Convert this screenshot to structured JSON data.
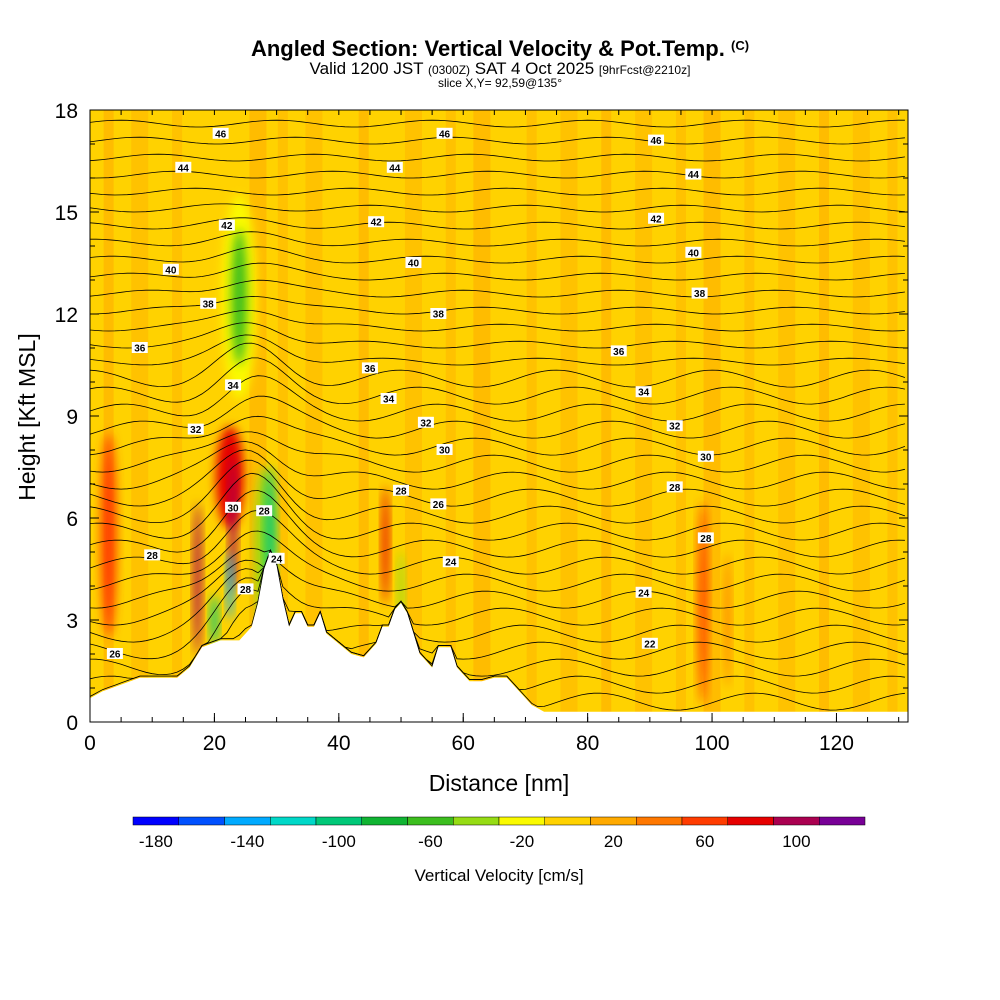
{
  "header": {
    "title": "Angled Section: Vertical Velocity & Pot.Temp.",
    "title_mark": "(C)",
    "valid_prefix": "Valid 1200 JST",
    "valid_utc": "(0300Z)",
    "valid_date": "SAT 4 Oct 2025",
    "forecast": "[9hrFcst@2210z]",
    "slice": "slice X,Y= 92,59@135°"
  },
  "colors": {
    "background": "#ffffff",
    "terrain": "#ffffff",
    "contour_line": "#000000",
    "plot_base": "#ffd200"
  },
  "chart_data": {
    "type": "heatmap",
    "xlabel": "Distance [nm]",
    "ylabel": "Height [Kft MSL]",
    "xlim": [
      0,
      131.5
    ],
    "ylim": [
      0,
      18
    ],
    "x_ticks": [
      0,
      20,
      40,
      60,
      80,
      100,
      120
    ],
    "y_ticks": [
      0,
      3,
      6,
      9,
      12,
      15,
      18
    ],
    "colorbar": {
      "label": "Vertical Velocity [cm/s]",
      "ticks": [
        -180,
        -140,
        -100,
        -60,
        -20,
        20,
        60,
        100
      ],
      "bins": [
        {
          "from": -190,
          "to": -170,
          "color": "#0000ff"
        },
        {
          "from": -170,
          "to": -150,
          "color": "#0050ff"
        },
        {
          "from": -150,
          "to": -130,
          "color": "#00aaff"
        },
        {
          "from": -130,
          "to": -110,
          "color": "#00d8c8"
        },
        {
          "from": -110,
          "to": -90,
          "color": "#00c878"
        },
        {
          "from": -90,
          "to": -70,
          "color": "#10b432"
        },
        {
          "from": -70,
          "to": -50,
          "color": "#3cbe1e"
        },
        {
          "from": -50,
          "to": -30,
          "color": "#96dc14"
        },
        {
          "from": -30,
          "to": -10,
          "color": "#fafa00"
        },
        {
          "from": -10,
          "to": 10,
          "color": "#ffd200"
        },
        {
          "from": 10,
          "to": 30,
          "color": "#ffaa00"
        },
        {
          "from": 30,
          "to": 50,
          "color": "#ff7800"
        },
        {
          "from": 50,
          "to": 70,
          "color": "#ff3c00"
        },
        {
          "from": 70,
          "to": 90,
          "color": "#e60000"
        },
        {
          "from": 90,
          "to": 110,
          "color": "#aa0050"
        },
        {
          "from": 110,
          "to": 130,
          "color": "#780096"
        }
      ]
    },
    "terrain_profile": [
      [
        0,
        0.7
      ],
      [
        2,
        0.9
      ],
      [
        5,
        1.1
      ],
      [
        8,
        1.3
      ],
      [
        11,
        1.3
      ],
      [
        14,
        1.3
      ],
      [
        16,
        1.6
      ],
      [
        18,
        2.2
      ],
      [
        21,
        2.4
      ],
      [
        24,
        2.4
      ],
      [
        26,
        2.8
      ],
      [
        27,
        3.5
      ],
      [
        28,
        4.5
      ],
      [
        29,
        5.0
      ],
      [
        30,
        4.6
      ],
      [
        31,
        3.6
      ],
      [
        32,
        2.8
      ],
      [
        33,
        3.2
      ],
      [
        34,
        3.2
      ],
      [
        35,
        2.8
      ],
      [
        36,
        2.8
      ],
      [
        37,
        3.2
      ],
      [
        38,
        2.6
      ],
      [
        40,
        2.3
      ],
      [
        42,
        2.0
      ],
      [
        44,
        1.9
      ],
      [
        46,
        2.3
      ],
      [
        47,
        2.8
      ],
      [
        48,
        2.8
      ],
      [
        49,
        3.3
      ],
      [
        50,
        3.5
      ],
      [
        51,
        3.2
      ],
      [
        52,
        2.6
      ],
      [
        53,
        2.0
      ],
      [
        55,
        1.6
      ],
      [
        56,
        2.2
      ],
      [
        58,
        2.2
      ],
      [
        59,
        1.6
      ],
      [
        61,
        1.2
      ],
      [
        63,
        1.2
      ],
      [
        65,
        1.3
      ],
      [
        67,
        1.3
      ],
      [
        69,
        0.9
      ],
      [
        71,
        0.5
      ],
      [
        73,
        0.3
      ],
      [
        131.5,
        0.3
      ]
    ],
    "cells": [
      {
        "x": 24,
        "y": 12.5,
        "w": 2.5,
        "h": 4.0,
        "value": -60
      },
      {
        "x": 24,
        "y": 12.5,
        "w": 5.5,
        "h": 6.0,
        "value": -20
      },
      {
        "x": 29,
        "y": 5.5,
        "w": 1.6,
        "h": 4.0,
        "value": -100
      },
      {
        "x": 28,
        "y": 5.0,
        "w": 3.0,
        "h": 5.0,
        "value": -40
      },
      {
        "x": 22.5,
        "y": 4.0,
        "w": 1.0,
        "h": 2.0,
        "value": -140
      },
      {
        "x": 20,
        "y": 3.0,
        "w": 1.2,
        "h": 1.5,
        "value": -100
      },
      {
        "x": 22.5,
        "y": 7.2,
        "w": 4.5,
        "h": 3.0,
        "value": 70
      },
      {
        "x": 17.3,
        "y": 4.2,
        "w": 1.2,
        "h": 4.5,
        "value": 90
      },
      {
        "x": 23,
        "y": 5.8,
        "w": 1.2,
        "h": 4.0,
        "value": 100
      },
      {
        "x": 47.5,
        "y": 5.2,
        "w": 1.1,
        "h": 3.5,
        "value": 80
      },
      {
        "x": 50,
        "y": 3.8,
        "w": 1.0,
        "h": 2.5,
        "value": -50
      },
      {
        "x": 3,
        "y": 5.5,
        "w": 2.5,
        "h": 6.0,
        "value": 50
      },
      {
        "x": 98.5,
        "y": 3.5,
        "w": 1.5,
        "h": 6.0,
        "value": 50
      },
      {
        "x": 102.5,
        "y": 3.0,
        "w": 1.0,
        "h": 4.0,
        "value": 40
      }
    ],
    "contour_labels": [
      {
        "x": 21,
        "y": 17.3,
        "text": "46"
      },
      {
        "x": 57,
        "y": 17.3,
        "text": "46"
      },
      {
        "x": 91,
        "y": 17.1,
        "text": "46"
      },
      {
        "x": 15,
        "y": 16.3,
        "text": "44"
      },
      {
        "x": 49,
        "y": 16.3,
        "text": "44"
      },
      {
        "x": 97,
        "y": 16.1,
        "text": "44"
      },
      {
        "x": 22,
        "y": 14.6,
        "text": "42"
      },
      {
        "x": 46,
        "y": 14.7,
        "text": "42"
      },
      {
        "x": 91,
        "y": 14.8,
        "text": "42"
      },
      {
        "x": 13,
        "y": 13.3,
        "text": "40"
      },
      {
        "x": 52,
        "y": 13.5,
        "text": "40"
      },
      {
        "x": 97,
        "y": 13.8,
        "text": "40"
      },
      {
        "x": 19,
        "y": 12.3,
        "text": "38"
      },
      {
        "x": 56,
        "y": 12.0,
        "text": "38"
      },
      {
        "x": 98,
        "y": 12.6,
        "text": "38"
      },
      {
        "x": 8,
        "y": 11.0,
        "text": "36"
      },
      {
        "x": 45,
        "y": 10.4,
        "text": "36"
      },
      {
        "x": 85,
        "y": 10.9,
        "text": "36"
      },
      {
        "x": 23,
        "y": 9.9,
        "text": "34"
      },
      {
        "x": 48,
        "y": 9.5,
        "text": "34"
      },
      {
        "x": 89,
        "y": 9.7,
        "text": "34"
      },
      {
        "x": 17,
        "y": 8.6,
        "text": "32"
      },
      {
        "x": 54,
        "y": 8.8,
        "text": "32"
      },
      {
        "x": 94,
        "y": 8.7,
        "text": "32"
      },
      {
        "x": 57,
        "y": 8.0,
        "text": "30"
      },
      {
        "x": 99,
        "y": 7.8,
        "text": "30"
      },
      {
        "x": 23,
        "y": 6.3,
        "text": "30"
      },
      {
        "x": 28,
        "y": 6.2,
        "text": "28"
      },
      {
        "x": 50,
        "y": 6.8,
        "text": "28"
      },
      {
        "x": 56,
        "y": 6.4,
        "text": "26"
      },
      {
        "x": 94,
        "y": 6.9,
        "text": "28"
      },
      {
        "x": 10,
        "y": 4.9,
        "text": "28"
      },
      {
        "x": 99,
        "y": 5.4,
        "text": "28"
      },
      {
        "x": 30,
        "y": 4.8,
        "text": "24"
      },
      {
        "x": 58,
        "y": 4.7,
        "text": "24"
      },
      {
        "x": 89,
        "y": 3.8,
        "text": "24"
      },
      {
        "x": 25,
        "y": 3.9,
        "text": "28"
      },
      {
        "x": 90,
        "y": 2.3,
        "text": "22"
      },
      {
        "x": 4,
        "y": 2.0,
        "text": "26"
      }
    ]
  }
}
